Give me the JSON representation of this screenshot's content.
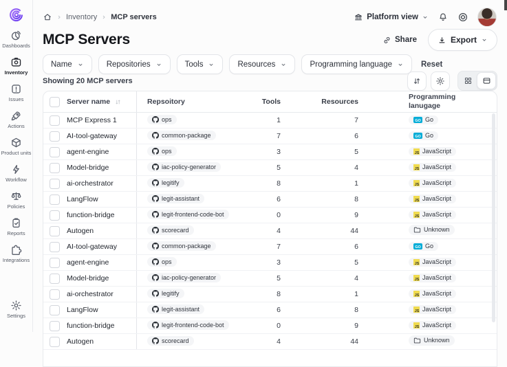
{
  "brand": {
    "logo_icon": "legit-spiral-logo",
    "logo_color": "#7c4df0"
  },
  "sidebar": {
    "items": [
      {
        "label": "Dashboards",
        "icon": "pie-chart-icon",
        "active": false
      },
      {
        "label": "Inventory",
        "icon": "inventory-box-icon",
        "active": true
      },
      {
        "label": "Issues",
        "icon": "issue-alert-icon",
        "active": false
      },
      {
        "label": "Actions",
        "icon": "rocket-icon",
        "active": false
      },
      {
        "label": "Product units",
        "icon": "cube-icon",
        "active": false
      },
      {
        "label": "Workflow",
        "icon": "lightning-icon",
        "active": false
      },
      {
        "label": "Policies",
        "icon": "scales-icon",
        "active": false
      },
      {
        "label": "Reports",
        "icon": "report-icon",
        "active": false
      },
      {
        "label": "Integrations",
        "icon": "puzzle-icon",
        "active": false
      }
    ],
    "bottom_item": {
      "label": "Settings",
      "icon": "gear-icon"
    }
  },
  "breadcrumb": {
    "items": [
      "Inventory",
      "MCP servers"
    ]
  },
  "topbar": {
    "platform_view_label": "Platform view"
  },
  "page_header": {
    "title": "MCP Servers",
    "share_label": "Share",
    "export_label": "Export"
  },
  "filters": {
    "chips": [
      "Name",
      "Repositories",
      "Tools",
      "Resources",
      "Programming language"
    ],
    "reset_label": "Reset"
  },
  "toolbar": {
    "summary": "Showing 20 MCP servers",
    "selected_view": "table"
  },
  "table": {
    "columns": [
      "Server name",
      "Repsoitory",
      "Tools",
      "Resources",
      "Programming lanugage"
    ],
    "language_colors": {
      "Go": "#00ACD7",
      "JavaScript": "#F0DB4F"
    },
    "rows": [
      {
        "name": "MCP Express 1",
        "repo": "ops",
        "tools": "1",
        "resources": "7",
        "language": "Go"
      },
      {
        "name": "AI-tool-gateway",
        "repo": "common-package",
        "tools": "7",
        "resources": "6",
        "language": "Go"
      },
      {
        "name": "agent-engine",
        "repo": "ops",
        "tools": "3",
        "resources": "5",
        "language": "JavaScript"
      },
      {
        "name": "Model-bridge",
        "repo": "iac-policy-generator",
        "tools": "5",
        "resources": "4",
        "language": "JavaScript"
      },
      {
        "name": "ai-orchestrator",
        "repo": "legitify",
        "tools": "8",
        "resources": "1",
        "language": "JavaScript"
      },
      {
        "name": "LangFlow",
        "repo": "legit-assistant",
        "tools": "6",
        "resources": "8",
        "language": "JavaScript"
      },
      {
        "name": "function-bridge",
        "repo": "legit-frontend-code-bot",
        "tools": "0",
        "resources": "9",
        "language": "JavaScript"
      },
      {
        "name": "Autogen",
        "repo": "scorecard",
        "tools": "4",
        "resources": "44",
        "language": "Unknown"
      },
      {
        "name": "AI-tool-gateway",
        "repo": "common-package",
        "tools": "7",
        "resources": "6",
        "language": "Go"
      },
      {
        "name": "agent-engine",
        "repo": "ops",
        "tools": "3",
        "resources": "5",
        "language": "JavaScript"
      },
      {
        "name": "Model-bridge",
        "repo": "iac-policy-generator",
        "tools": "5",
        "resources": "4",
        "language": "JavaScript"
      },
      {
        "name": "ai-orchestrator",
        "repo": "legitify",
        "tools": "8",
        "resources": "1",
        "language": "JavaScript"
      },
      {
        "name": "LangFlow",
        "repo": "legit-assistant",
        "tools": "6",
        "resources": "8",
        "language": "JavaScript"
      },
      {
        "name": "function-bridge",
        "repo": "legit-frontend-code-bot",
        "tools": "0",
        "resources": "9",
        "language": "JavaScript"
      },
      {
        "name": "Autogen",
        "repo": "scorecard",
        "tools": "4",
        "resources": "44",
        "language": "Unknown"
      }
    ]
  }
}
